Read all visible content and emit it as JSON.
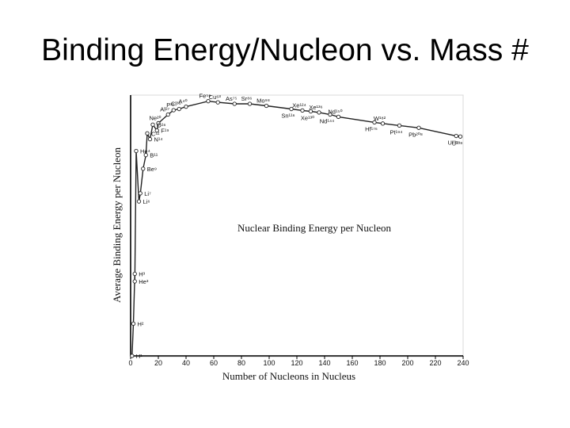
{
  "slide": {
    "title": "Binding Energy/Nucleon vs. Mass #"
  },
  "chart_data": {
    "type": "line",
    "title": "Nuclear Binding Energy per Nucleon",
    "xlabel": "Number of Nucleons in Nucleus",
    "ylabel": "Average Binding Energy per Nucleon",
    "xlim": [
      0,
      240
    ],
    "ylim": [
      0,
      9
    ],
    "x_ticks": [
      "0",
      "20",
      "40",
      "60",
      "80",
      "100",
      "120",
      "140",
      "160",
      "180",
      "200",
      "220",
      "240"
    ],
    "grid": false,
    "series": [
      {
        "points": [
          {
            "x": 1,
            "y": 0,
            "label": "H¹"
          },
          {
            "x": 2,
            "y": 1.11,
            "label": "H²"
          },
          {
            "x": 3,
            "y": 2.83,
            "label": "H³"
          },
          {
            "x": 3,
            "y": 2.57,
            "label": "He³"
          },
          {
            "x": 4,
            "y": 7.07,
            "label": "He⁴"
          },
          {
            "x": 6,
            "y": 5.33,
            "label": "Li⁶"
          },
          {
            "x": 7,
            "y": 5.61,
            "label": "Li⁷"
          },
          {
            "x": 9,
            "y": 6.46,
            "label": "Be⁹"
          },
          {
            "x": 11,
            "y": 6.93,
            "label": "B¹¹"
          },
          {
            "x": 12,
            "y": 7.68,
            "label": "C¹²"
          },
          {
            "x": 14,
            "y": 7.48,
            "label": "N¹⁴"
          },
          {
            "x": 16,
            "y": 7.98,
            "label": "O¹⁶"
          },
          {
            "x": 19,
            "y": 7.78,
            "label": "F¹⁹"
          },
          {
            "x": 20,
            "y": 8.03,
            "label": "Ne²⁰"
          },
          {
            "x": 27,
            "y": 8.33,
            "label": "Al²⁷"
          },
          {
            "x": 31,
            "y": 8.48,
            "label": "P³¹"
          },
          {
            "x": 35,
            "y": 8.52,
            "label": "Cl³⁵"
          },
          {
            "x": 40,
            "y": 8.6,
            "label": "A⁴⁰"
          },
          {
            "x": 56,
            "y": 8.79,
            "label": "Fe⁵⁶"
          },
          {
            "x": 63,
            "y": 8.75,
            "label": "Cu⁶³"
          },
          {
            "x": 75,
            "y": 8.7,
            "label": "As⁷⁵"
          },
          {
            "x": 86,
            "y": 8.7,
            "label": "Sr⁸⁶"
          },
          {
            "x": 98,
            "y": 8.63,
            "label": "Mo⁹⁸"
          },
          {
            "x": 116,
            "y": 8.52,
            "label": "Sn¹¹⁶"
          },
          {
            "x": 124,
            "y": 8.47,
            "label": "Xe¹²⁴"
          },
          {
            "x": 130,
            "y": 8.44,
            "label": "Xe¹³⁰"
          },
          {
            "x": 136,
            "y": 8.4,
            "label": "Xe¹³⁶"
          },
          {
            "x": 144,
            "y": 8.33,
            "label": "Nd¹⁴⁴"
          },
          {
            "x": 150,
            "y": 8.25,
            "label": "Nd¹⁵⁰"
          },
          {
            "x": 176,
            "y": 8.06,
            "label": "Hf¹⁷⁶"
          },
          {
            "x": 182,
            "y": 8.02,
            "label": "W¹⁸²"
          },
          {
            "x": 194,
            "y": 7.95,
            "label": "Pt¹⁹⁴"
          },
          {
            "x": 208,
            "y": 7.87,
            "label": "Pb²⁰⁸"
          },
          {
            "x": 235,
            "y": 7.59,
            "label": "U²³⁵"
          },
          {
            "x": 238,
            "y": 7.57,
            "label": "U²³⁸"
          }
        ]
      }
    ]
  }
}
